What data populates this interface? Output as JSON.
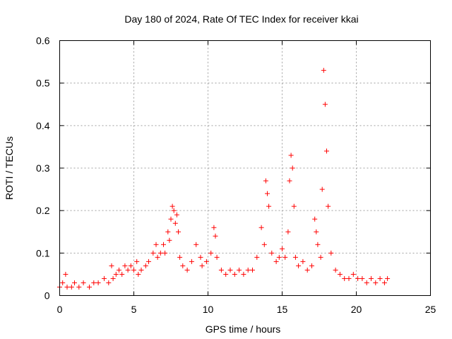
{
  "chart_data": {
    "type": "scatter",
    "title": "Day 180 of 2024, Rate Of TEC Index for receiver kkai",
    "xlabel": "GPS time / hours",
    "ylabel": "ROTI / TECUs",
    "xlim": [
      0,
      25
    ],
    "ylim": [
      0,
      0.6
    ],
    "x_ticks": [
      0,
      5,
      10,
      15,
      20,
      25
    ],
    "x_tick_labels": [
      "0",
      "5",
      "10",
      "15",
      "20",
      "25"
    ],
    "y_ticks": [
      0,
      0.1,
      0.2,
      0.3,
      0.4,
      0.5,
      0.6
    ],
    "y_tick_labels": [
      "0",
      "0.1",
      "0.2",
      "0.3",
      "0.4",
      "0.5",
      "0.6"
    ],
    "grid": true,
    "marker": "+",
    "color": "#ff0000",
    "series": [
      {
        "name": "ROTI",
        "x": [
          0.0,
          0.2,
          0.4,
          0.5,
          0.8,
          1.0,
          1.3,
          1.6,
          2.0,
          2.3,
          2.6,
          3.0,
          3.3,
          3.5,
          3.6,
          3.8,
          4.0,
          4.2,
          4.4,
          4.6,
          4.8,
          5.0,
          5.2,
          5.3,
          5.5,
          5.8,
          6.0,
          6.3,
          6.5,
          6.6,
          6.8,
          7.0,
          7.1,
          7.3,
          7.4,
          7.5,
          7.6,
          7.7,
          7.8,
          7.9,
          8.0,
          8.1,
          8.3,
          8.6,
          8.9,
          9.2,
          9.5,
          9.6,
          9.9,
          10.2,
          10.4,
          10.5,
          10.6,
          10.9,
          11.2,
          11.5,
          11.8,
          12.1,
          12.4,
          12.7,
          13.0,
          13.3,
          13.6,
          13.8,
          13.9,
          14.0,
          14.1,
          14.3,
          14.6,
          14.8,
          15.0,
          15.2,
          15.4,
          15.5,
          15.6,
          15.7,
          15.8,
          15.9,
          16.1,
          16.4,
          16.7,
          17.0,
          17.2,
          17.3,
          17.4,
          17.6,
          17.7,
          17.8,
          17.9,
          18.0,
          18.1,
          18.3,
          18.6,
          18.9,
          19.2,
          19.5,
          19.8,
          20.1,
          20.4,
          20.7,
          21.0,
          21.3,
          21.6,
          21.9,
          22.1
        ],
        "y": [
          0.02,
          0.03,
          0.05,
          0.02,
          0.02,
          0.03,
          0.02,
          0.03,
          0.02,
          0.03,
          0.03,
          0.04,
          0.03,
          0.07,
          0.04,
          0.05,
          0.06,
          0.05,
          0.07,
          0.06,
          0.07,
          0.06,
          0.08,
          0.05,
          0.06,
          0.07,
          0.08,
          0.1,
          0.12,
          0.09,
          0.1,
          0.12,
          0.1,
          0.15,
          0.13,
          0.18,
          0.21,
          0.2,
          0.17,
          0.19,
          0.15,
          0.09,
          0.07,
          0.06,
          0.08,
          0.12,
          0.09,
          0.07,
          0.08,
          0.1,
          0.16,
          0.14,
          0.09,
          0.06,
          0.05,
          0.06,
          0.05,
          0.06,
          0.05,
          0.06,
          0.06,
          0.09,
          0.16,
          0.12,
          0.27,
          0.24,
          0.21,
          0.1,
          0.08,
          0.09,
          0.11,
          0.09,
          0.15,
          0.27,
          0.33,
          0.3,
          0.21,
          0.09,
          0.07,
          0.08,
          0.06,
          0.07,
          0.18,
          0.15,
          0.12,
          0.09,
          0.25,
          0.53,
          0.45,
          0.34,
          0.21,
          0.1,
          0.06,
          0.05,
          0.04,
          0.04,
          0.05,
          0.04,
          0.04,
          0.03,
          0.04,
          0.03,
          0.04,
          0.03,
          0.04
        ]
      }
    ]
  }
}
